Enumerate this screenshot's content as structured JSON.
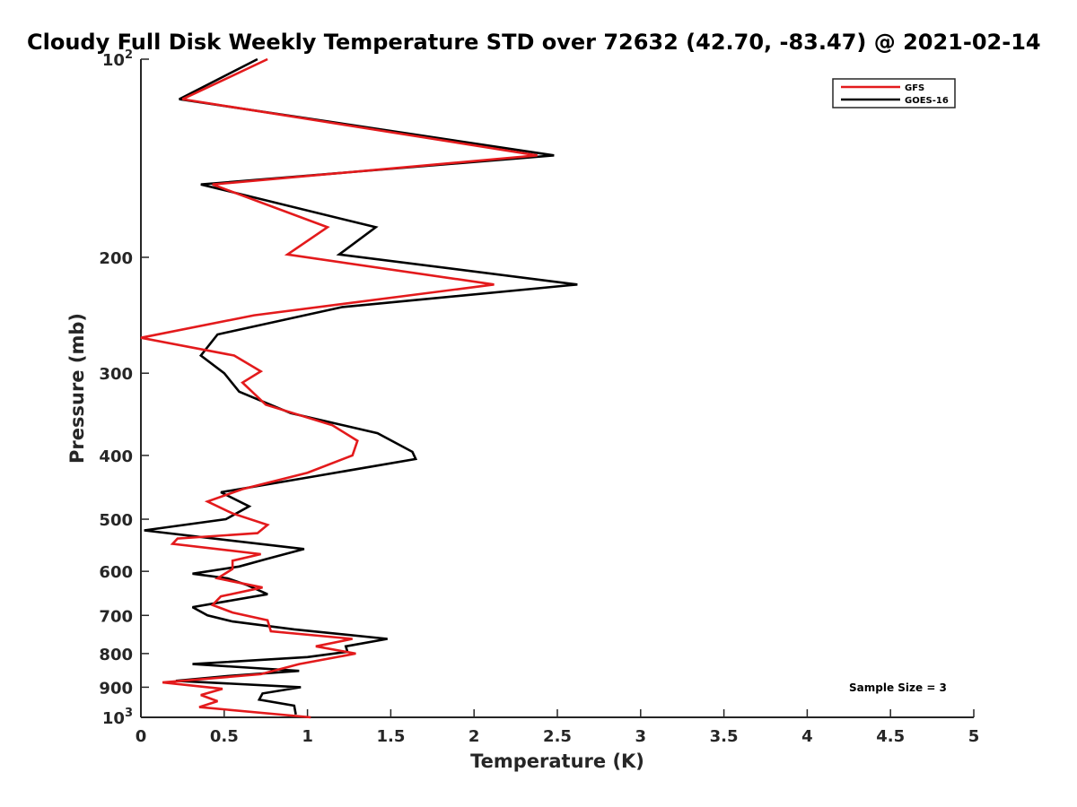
{
  "chart_data": {
    "type": "line",
    "title": "Cloudy Full Disk Weekly Temperature STD over 72632 (42.70, -83.47) @ 2021-02-14",
    "xlabel": "Temperature (K)",
    "ylabel": "Pressure (mb)",
    "xlim": [
      0,
      5
    ],
    "ylim": [
      100,
      1000
    ],
    "y_scale": "log",
    "y_reversed": true,
    "grid": false,
    "legend_position": "top-right",
    "x_ticks": [
      "0",
      "0.5",
      "1",
      "1.5",
      "2",
      "2.5",
      "3",
      "3.5",
      "4",
      "4.5",
      "5"
    ],
    "y_ticks": [
      {
        "value": 100,
        "base": "10",
        "exp": "2"
      },
      {
        "value": 200,
        "label": "200"
      },
      {
        "value": 300,
        "label": "300"
      },
      {
        "value": 400,
        "label": "400"
      },
      {
        "value": 500,
        "label": "500"
      },
      {
        "value": 600,
        "label": "600"
      },
      {
        "value": 700,
        "label": "700"
      },
      {
        "value": 800,
        "label": "800"
      },
      {
        "value": 900,
        "label": "900"
      },
      {
        "value": 1000,
        "base": "10",
        "exp": "3"
      }
    ],
    "annotation": "Sample Size = 3",
    "series": [
      {
        "name": "GFS",
        "color": "#e31a1c",
        "x": [
          0.76,
          0.25,
          2.38,
          0.43,
          1.12,
          0.88,
          2.12,
          0.68,
          0.0,
          0.56,
          0.72,
          0.61,
          0.75,
          1.15,
          1.3,
          1.27,
          1.0,
          0.61,
          0.4,
          0.55,
          0.76,
          0.7,
          0.22,
          0.19,
          0.72,
          0.55,
          0.55,
          0.46,
          0.73,
          0.48,
          0.43,
          0.55,
          0.76,
          0.78,
          1.27,
          1.05,
          1.29,
          0.95,
          0.72,
          0.13,
          0.49,
          0.36,
          0.46,
          0.35,
          1.02
        ],
        "y": [
          100,
          115,
          140,
          155,
          180,
          198,
          220,
          245,
          265,
          282,
          298,
          310,
          335,
          360,
          380,
          400,
          425,
          450,
          470,
          490,
          510,
          525,
          535,
          545,
          565,
          578,
          595,
          615,
          635,
          655,
          675,
          693,
          712,
          740,
          760,
          780,
          800,
          830,
          860,
          885,
          905,
          925,
          945,
          965,
          1000
        ]
      },
      {
        "name": "GOES-16",
        "color": "#000000",
        "x": [
          0.7,
          0.23,
          2.48,
          0.36,
          1.41,
          1.19,
          2.62,
          1.21,
          0.46,
          0.36,
          0.5,
          0.59,
          0.9,
          1.42,
          1.63,
          1.65,
          1.05,
          0.48,
          0.65,
          0.51,
          0.02,
          0.98,
          0.75,
          0.59,
          0.31,
          0.52,
          0.64,
          0.76,
          0.31,
          0.4,
          0.55,
          0.92,
          1.48,
          1.23,
          1.24,
          1.0,
          0.31,
          0.95,
          0.53,
          0.21,
          0.96,
          0.73,
          0.71,
          0.92,
          0.93
        ],
        "y": [
          100,
          115,
          140,
          155,
          180,
          198,
          220,
          238,
          262,
          282,
          300,
          320,
          345,
          370,
          395,
          405,
          430,
          455,
          478,
          500,
          520,
          555,
          575,
          590,
          605,
          615,
          630,
          650,
          680,
          700,
          715,
          735,
          760,
          780,
          795,
          810,
          830,
          850,
          865,
          880,
          900,
          920,
          940,
          960,
          990
        ]
      }
    ]
  }
}
